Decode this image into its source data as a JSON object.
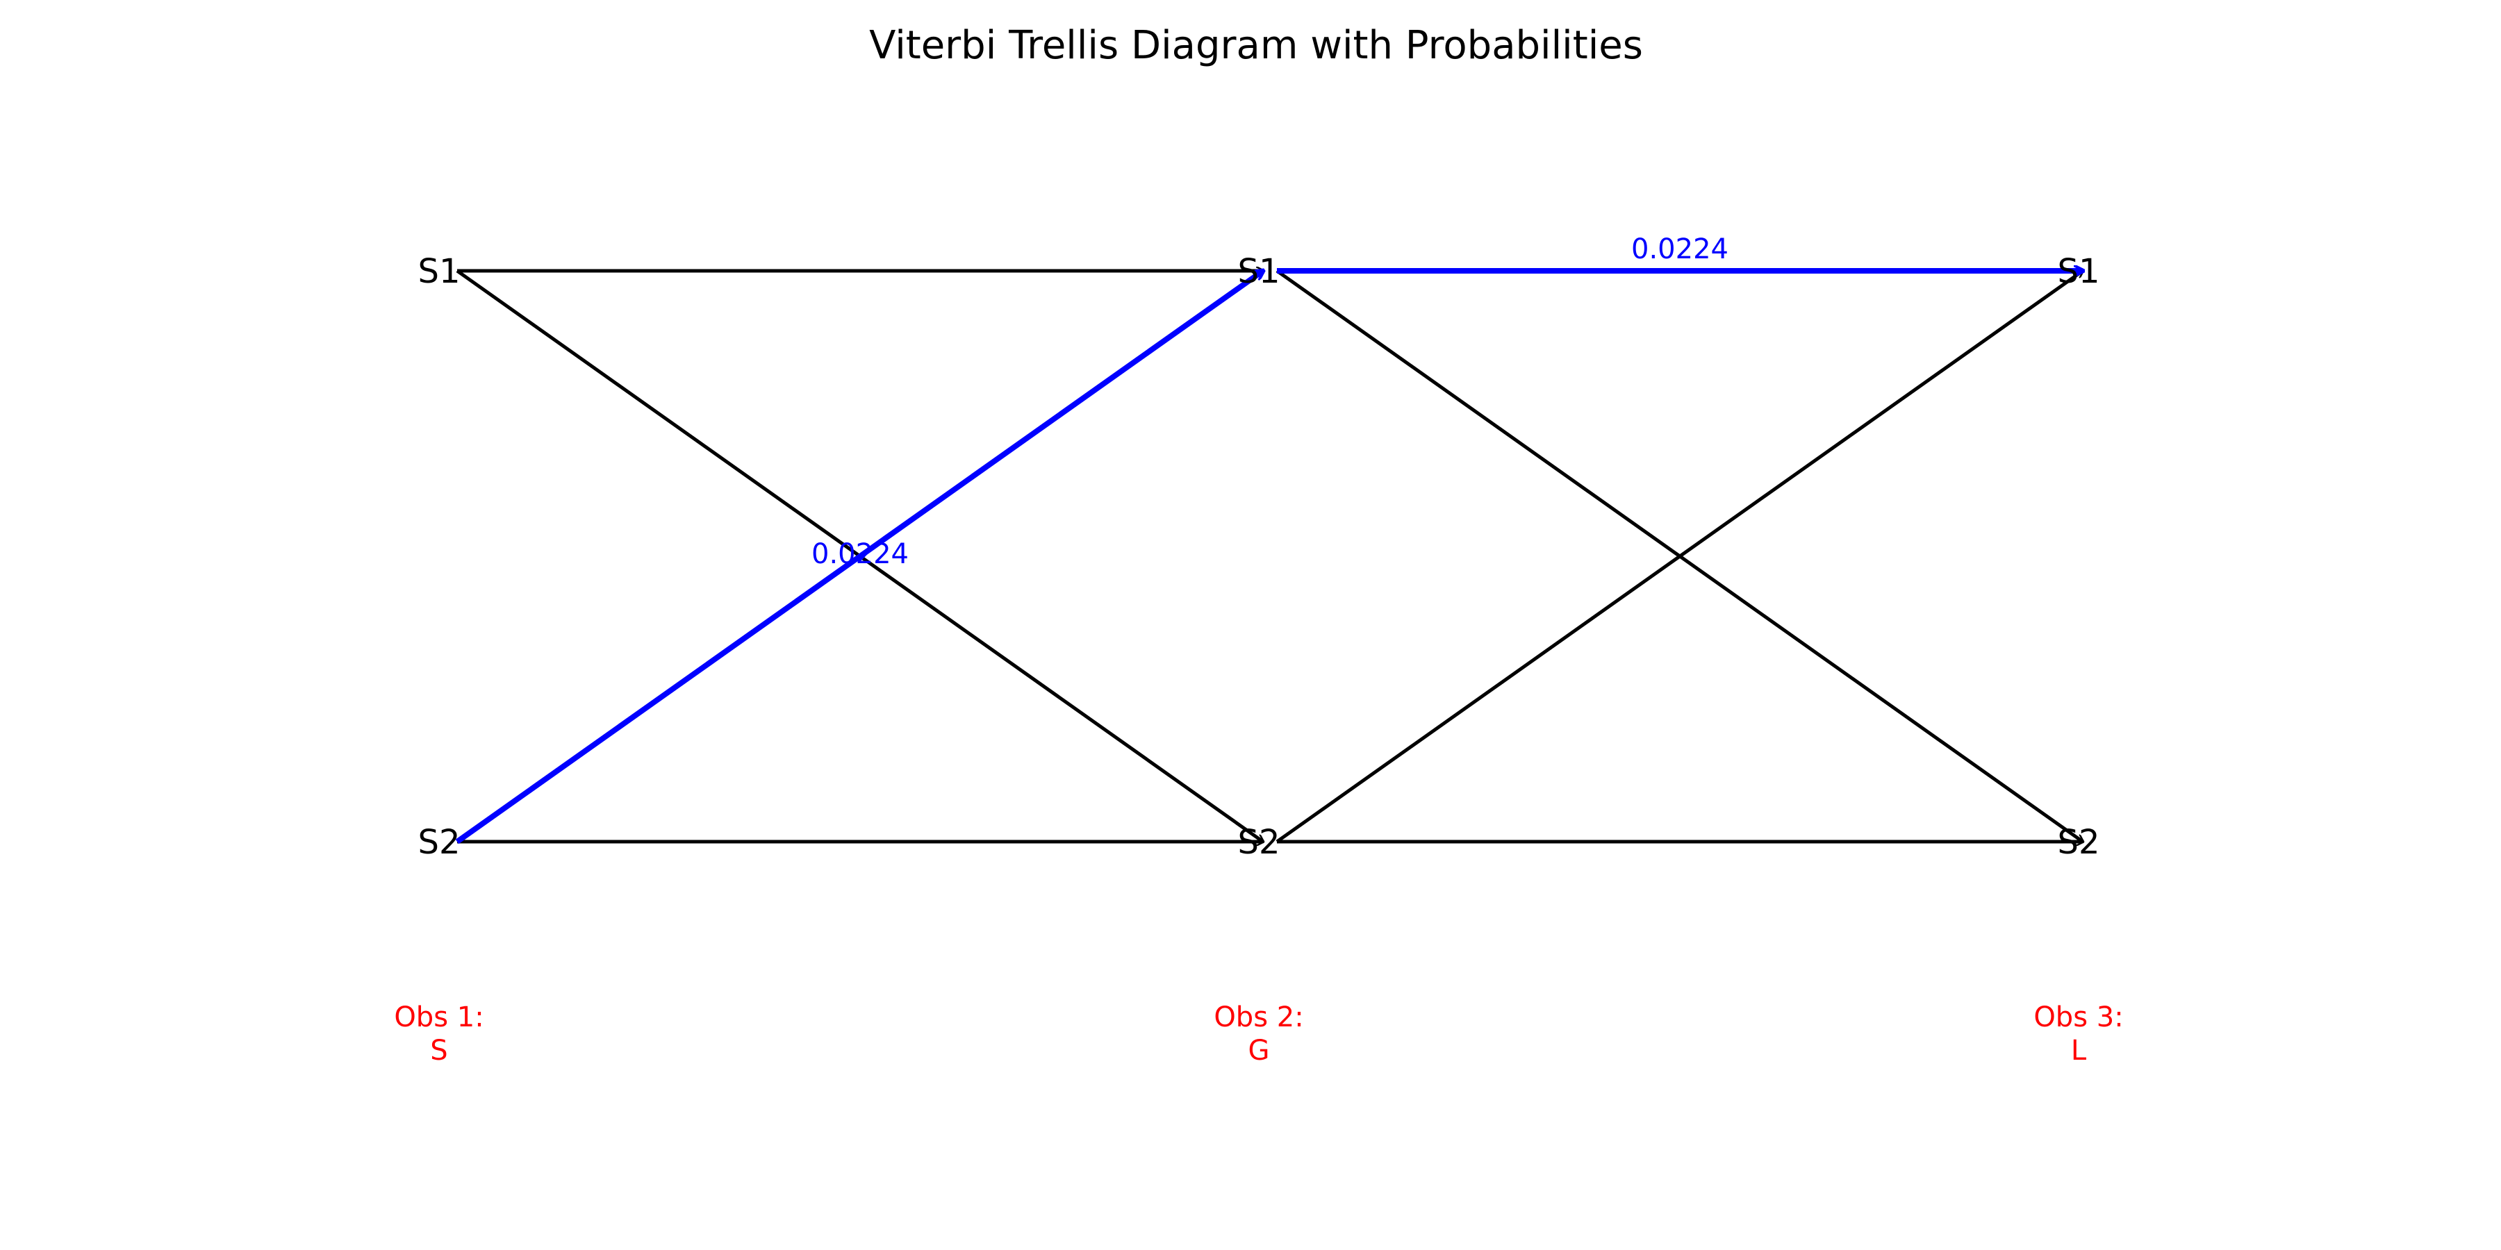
{
  "title": "Viterbi Trellis Diagram with Probabilities",
  "colors": {
    "edge": "#000000",
    "best_path": "#0000ff",
    "observation": "#ff0000",
    "probability": "#0000ff"
  },
  "states": [
    "S1",
    "S2"
  ],
  "observations": [
    {
      "line1": "Obs 1:",
      "line2": "S"
    },
    {
      "line1": "Obs 2:",
      "line2": "G"
    },
    {
      "line1": "Obs 3:",
      "line2": "L"
    }
  ],
  "edges": [
    {
      "from_step": 0,
      "from": "S1",
      "to_step": 1,
      "to": "S1",
      "best": false
    },
    {
      "from_step": 0,
      "from": "S1",
      "to_step": 1,
      "to": "S2",
      "best": false
    },
    {
      "from_step": 0,
      "from": "S2",
      "to_step": 1,
      "to": "S1",
      "best": true,
      "probability": "0.0224"
    },
    {
      "from_step": 0,
      "from": "S2",
      "to_step": 1,
      "to": "S2",
      "best": false
    },
    {
      "from_step": 1,
      "from": "S1",
      "to_step": 2,
      "to": "S1",
      "best": true,
      "probability": "0.0224"
    },
    {
      "from_step": 1,
      "from": "S1",
      "to_step": 2,
      "to": "S2",
      "best": false
    },
    {
      "from_step": 1,
      "from": "S2",
      "to_step": 2,
      "to": "S1",
      "best": false
    },
    {
      "from_step": 1,
      "from": "S2",
      "to_step": 2,
      "to": "S2",
      "best": false
    }
  ]
}
